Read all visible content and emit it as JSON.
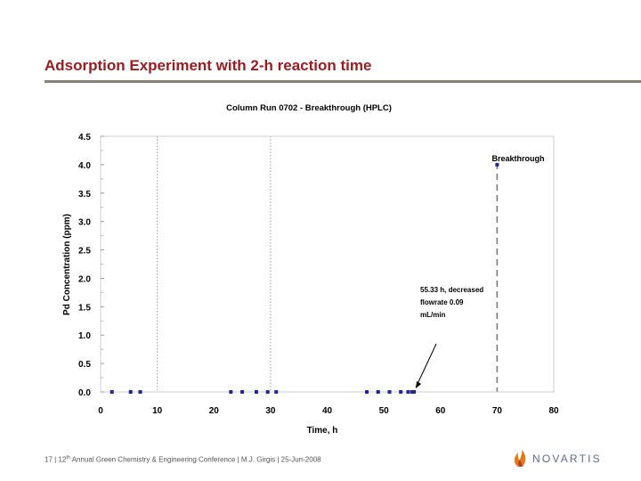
{
  "slide": {
    "title": "Adsorption Experiment with 2-h reaction time"
  },
  "footer": {
    "page": "17",
    "sep1": " | ",
    "ordinal_num": "12",
    "ordinal_suffix": "th",
    "conference": " Annual Green Chemistry &  Engineering Conference",
    "sep2": " | ",
    "author": "M.J. Girgis",
    "sep3": " | ",
    "date": "25-Jun-2008"
  },
  "logo": {
    "text": "NOVARTIS",
    "color": "#5b6f8e",
    "accent": "#e07b1a"
  },
  "chart_data": {
    "type": "scatter",
    "title": "Column Run 0702 - Breakthrough (HPLC)",
    "xlabel": "Time, h",
    "ylabel": "Pd Concentration (ppm)",
    "xlim": [
      0,
      80
    ],
    "ylim": [
      0,
      4.5
    ],
    "x_ticks": [
      "0",
      "10",
      "20",
      "30",
      "40",
      "50",
      "60",
      "70",
      "80"
    ],
    "y_ticks": [
      "0.0",
      "0.5",
      "1.0",
      "1.5",
      "2.0",
      "2.5",
      "3.0",
      "3.5",
      "4.0",
      "4.5"
    ],
    "series": [
      {
        "name": "Pd Concentration",
        "color": "#1f2a8c",
        "x": [
          2,
          5.3,
          7,
          23,
          25,
          27.5,
          29.5,
          31,
          47,
          49,
          51,
          53,
          54.3,
          55,
          55.33,
          70
        ],
        "y": [
          0,
          0,
          0,
          0,
          0,
          0,
          0,
          0,
          0,
          0,
          0,
          0,
          0,
          0,
          0,
          4.0
        ]
      }
    ],
    "reference_lines": [
      {
        "x": 10,
        "style": "dotted"
      },
      {
        "x": 30,
        "style": "dotted"
      },
      {
        "x": 70,
        "style": "dashed"
      }
    ],
    "annotations": {
      "breakthrough": {
        "text": "Breakthrough",
        "x": 70,
        "y": 4.0
      },
      "flowrate": {
        "lines": [
          "55.33 h, decreased",
          "flowrate 0.09",
          "mL/min"
        ],
        "arrow_target_x": 55.33,
        "arrow_target_y": 0
      }
    }
  }
}
